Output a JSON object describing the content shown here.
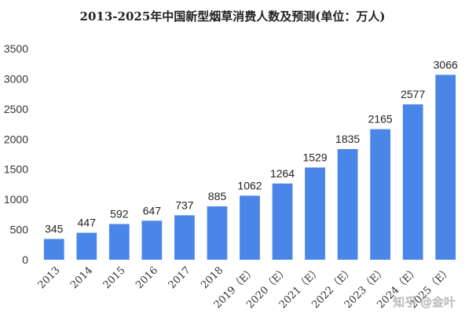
{
  "chart_data": {
    "type": "bar",
    "title": "2013-2025年中国新型烟草消费人数及预测(单位：万人)",
    "categories": [
      "2013",
      "2014",
      "2015",
      "2016",
      "2017",
      "2018",
      "2019（E）",
      "2020（E）",
      "2021（E）",
      "2022（E）",
      "2023（E）",
      "2024（E）",
      "2025（E）"
    ],
    "series": [
      {
        "values": [
          345,
          447,
          592,
          647,
          737,
          885,
          1062,
          1264,
          1529,
          1835,
          2165,
          2577,
          3066
        ]
      }
    ],
    "data_labels": [
      "345",
      "447",
      "592",
      "647",
      "737",
      "885",
      "1062",
      "1264",
      "1529",
      "1835",
      "2165",
      "2577",
      "3066"
    ],
    "y_ticks": [
      0,
      500,
      1000,
      1500,
      2000,
      2500,
      3000,
      3500
    ],
    "ylim": [
      0,
      3500
    ],
    "xlabel": "",
    "ylabel": "",
    "grid": false,
    "legend": "none",
    "bar_color": "#4a86e8"
  },
  "watermark": {
    "text": "知乎 @金叶"
  }
}
